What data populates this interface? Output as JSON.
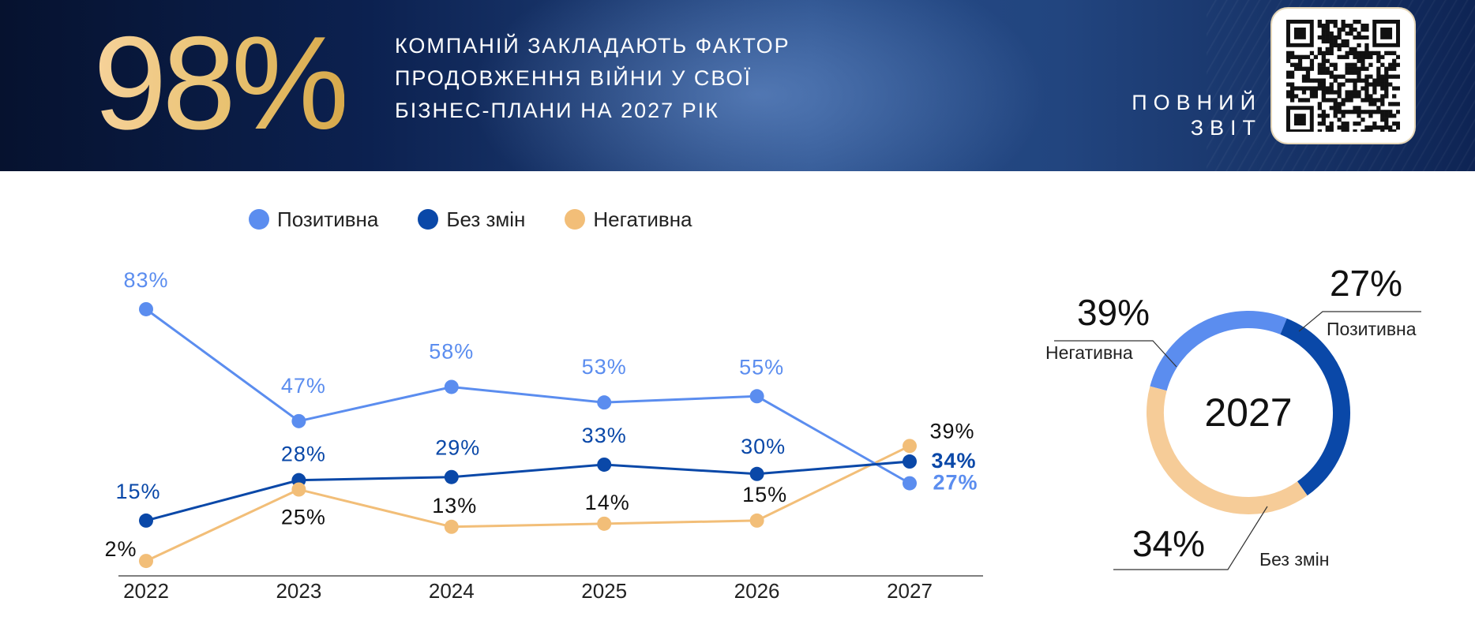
{
  "banner": {
    "big_number": "98%",
    "headline_lines": [
      "КОМПАНІЙ ЗАКЛАДАЮТЬ ФАКТОР",
      "ПРОДОВЖЕННЯ ВІЙНИ У СВОЇ",
      "БІЗНЕС-ПЛАНИ НА 2027 РІК"
    ],
    "report_label_lines": [
      "ПОВНИЙ",
      "ЗВІТ"
    ],
    "qr_icon": "qr-code-icon"
  },
  "colors": {
    "positive": "#5b8def",
    "no_change": "#0a48a8",
    "negative": "#f2be78",
    "negative_donut": "#f6cc98"
  },
  "chart_data": [
    {
      "type": "line",
      "x": [
        "2022",
        "2023",
        "2024",
        "2025",
        "2026",
        "2027"
      ],
      "ylim": [
        0,
        90
      ],
      "grid": false,
      "legend_position": "top-left",
      "series": [
        {
          "key": "positive",
          "name": "Позитивна",
          "values": [
            83,
            47,
            58,
            53,
            55,
            27
          ],
          "labels": [
            "83%",
            "47%",
            "58%",
            "53%",
            "55%",
            "27%"
          ]
        },
        {
          "key": "no_change",
          "name": "Без змін",
          "values": [
            15,
            28,
            29,
            33,
            30,
            34
          ],
          "labels": [
            "15%",
            "28%",
            "29%",
            "33%",
            "30%",
            "34%"
          ]
        },
        {
          "key": "negative",
          "name": "Негативна",
          "values": [
            2,
            25,
            13,
            14,
            15,
            39
          ],
          "labels": [
            "2%",
            "25%",
            "13%",
            "14%",
            "15%",
            "39%"
          ]
        }
      ]
    },
    {
      "type": "pie",
      "center_label": "2027",
      "slices": [
        {
          "key": "positive",
          "label": "Позитивна",
          "value": 27,
          "value_label": "27%"
        },
        {
          "key": "no_change",
          "label": "Без змін",
          "value": 34,
          "value_label": "34%"
        },
        {
          "key": "negative",
          "label": "Негативна",
          "value": 39,
          "value_label": "39%"
        }
      ]
    }
  ]
}
